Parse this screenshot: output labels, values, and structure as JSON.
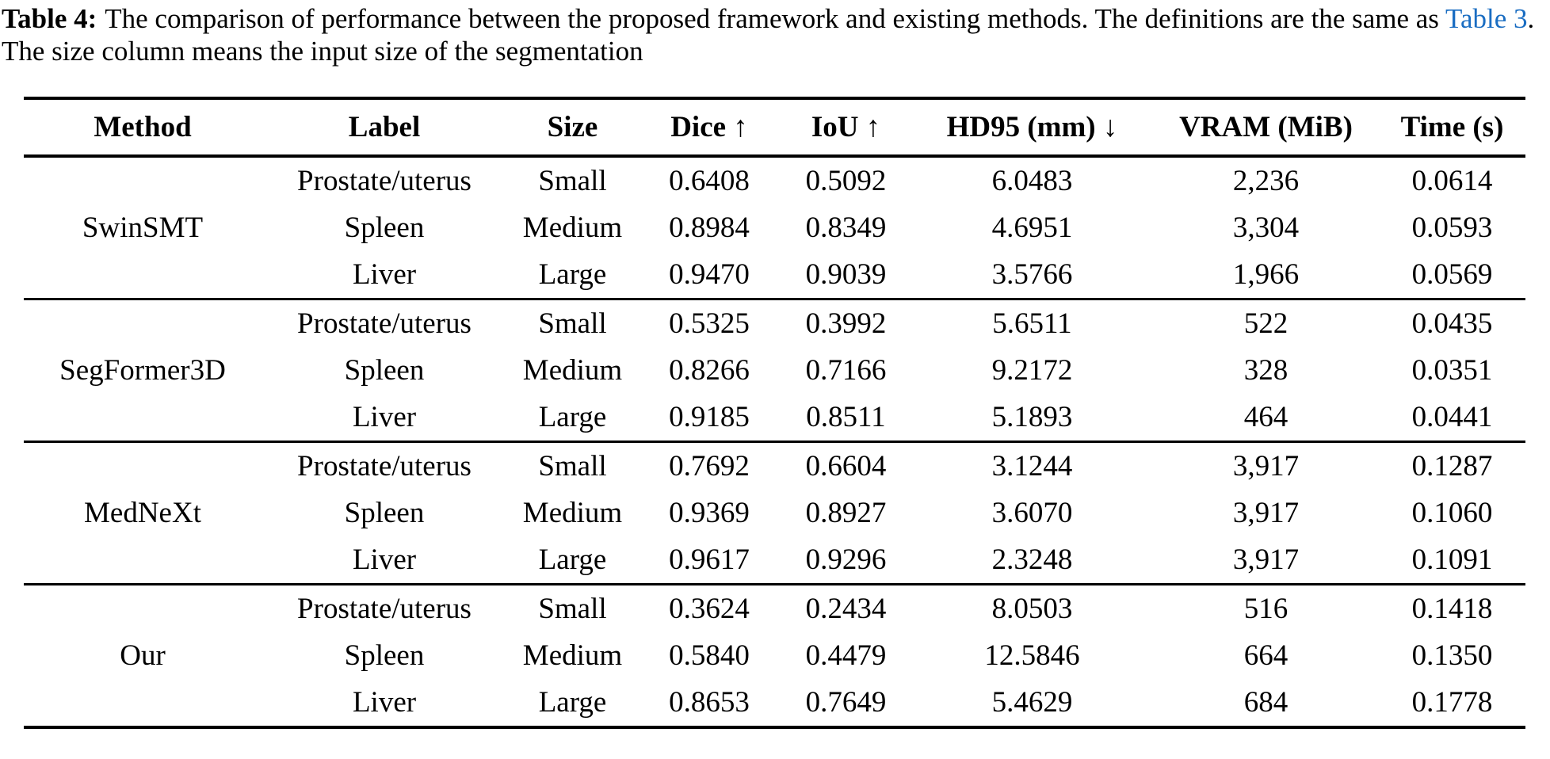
{
  "caption": {
    "label": "Table 4:",
    "text_before_link": "The comparison of performance between the proposed framework and existing methods. The definitions are the same as ",
    "link_text": "Table 3",
    "text_after_link": ". The size column means the input size of the segmentation",
    "link_color": "#1a6dc2"
  },
  "table": {
    "headers": [
      "Method",
      "Label",
      "Size",
      "Dice ↑",
      "IoU ↑",
      "HD95 (mm) ↓",
      "VRAM (MiB)",
      "Time (s)"
    ],
    "groups": [
      {
        "method": "SwinSMT",
        "rows": [
          {
            "label": "Prostate/uterus",
            "size": "Small",
            "dice": "0.6408",
            "iou": "0.5092",
            "hd95": "6.0483",
            "vram": "2,236",
            "time": "0.0614"
          },
          {
            "label": "Spleen",
            "size": "Medium",
            "dice": "0.8984",
            "iou": "0.8349",
            "hd95": "4.6951",
            "vram": "3,304",
            "time": "0.0593"
          },
          {
            "label": "Liver",
            "size": "Large",
            "dice": "0.9470",
            "iou": "0.9039",
            "hd95": "3.5766",
            "vram": "1,966",
            "time": "0.0569"
          }
        ]
      },
      {
        "method": "SegFormer3D",
        "rows": [
          {
            "label": "Prostate/uterus",
            "size": "Small",
            "dice": "0.5325",
            "iou": "0.3992",
            "hd95": "5.6511",
            "vram": "522",
            "time": "0.0435"
          },
          {
            "label": "Spleen",
            "size": "Medium",
            "dice": "0.8266",
            "iou": "0.7166",
            "hd95": "9.2172",
            "vram": "328",
            "time": "0.0351"
          },
          {
            "label": "Liver",
            "size": "Large",
            "dice": "0.9185",
            "iou": "0.8511",
            "hd95": "5.1893",
            "vram": "464",
            "time": "0.0441"
          }
        ]
      },
      {
        "method": "MedNeXt",
        "rows": [
          {
            "label": "Prostate/uterus",
            "size": "Small",
            "dice": "0.7692",
            "iou": "0.6604",
            "hd95": "3.1244",
            "vram": "3,917",
            "time": "0.1287"
          },
          {
            "label": "Spleen",
            "size": "Medium",
            "dice": "0.9369",
            "iou": "0.8927",
            "hd95": "3.6070",
            "vram": "3,917",
            "time": "0.1060"
          },
          {
            "label": "Liver",
            "size": "Large",
            "dice": "0.9617",
            "iou": "0.9296",
            "hd95": "2.3248",
            "vram": "3,917",
            "time": "0.1091"
          }
        ]
      },
      {
        "method": "Our",
        "rows": [
          {
            "label": "Prostate/uterus",
            "size": "Small",
            "dice": "0.3624",
            "iou": "0.2434",
            "hd95": "8.0503",
            "vram": "516",
            "time": "0.1418"
          },
          {
            "label": "Spleen",
            "size": "Medium",
            "dice": "0.5840",
            "iou": "0.4479",
            "hd95": "12.5846",
            "vram": "664",
            "time": "0.1350"
          },
          {
            "label": "Liver",
            "size": "Large",
            "dice": "0.8653",
            "iou": "0.7649",
            "hd95": "5.4629",
            "vram": "684",
            "time": "0.1778"
          }
        ]
      }
    ]
  }
}
